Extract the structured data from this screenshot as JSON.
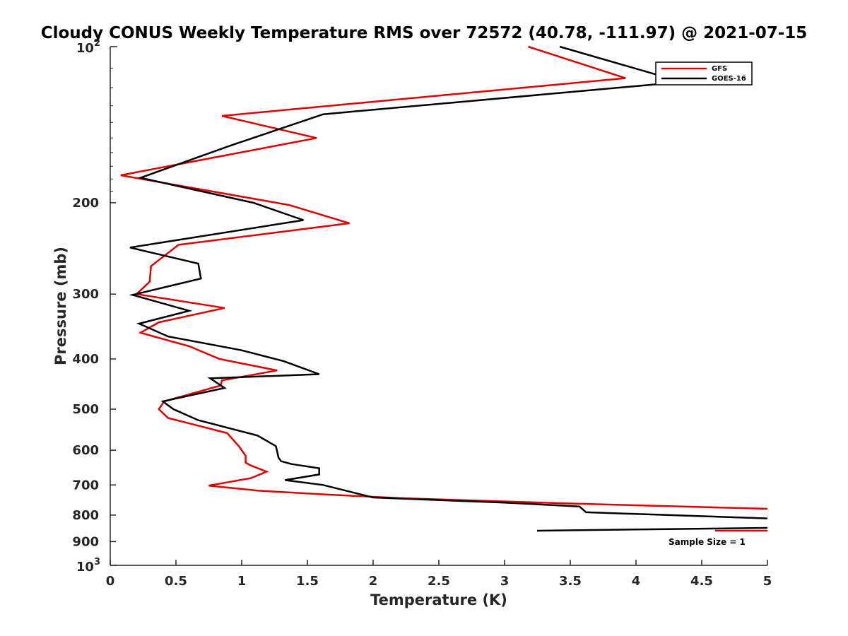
{
  "chart_data": {
    "type": "line",
    "title": "Cloudy CONUS Weekly Temperature RMS over 72572 (40.78, -111.97) @ 2021-07-15",
    "xlabel": "Temperature (K)",
    "ylabel": "Pressure (mb)",
    "xlim": [
      0,
      5
    ],
    "ylim": [
      100,
      1000
    ],
    "y_scale": "log",
    "y_reversed": true,
    "x_ticks": [
      0,
      0.5,
      1,
      1.5,
      2,
      2.5,
      3,
      3.5,
      4,
      4.5,
      5
    ],
    "x_tick_labels": [
      "0",
      "0.5",
      "1",
      "1.5",
      "2",
      "2.5",
      "3",
      "3.5",
      "4",
      "4.5",
      "5"
    ],
    "y_ticks": [
      200,
      300,
      400,
      500,
      600,
      700,
      800,
      900
    ],
    "y_tick_labels": [
      "200",
      "300",
      "400",
      "500",
      "600",
      "700",
      "800",
      "900"
    ],
    "y_decade_labels": [
      {
        "value": 100,
        "base": "10",
        "exp": "2"
      },
      {
        "value": 1000,
        "base": "10",
        "exp": "3"
      }
    ],
    "legend": {
      "position": "top-right"
    },
    "annotation": "Sample Size = 1",
    "series": [
      {
        "name": "GFS",
        "color": "#e00000",
        "points": [
          [
            3.18,
            100
          ],
          [
            3.92,
            115
          ],
          [
            0.85,
            136
          ],
          [
            1.57,
            150
          ],
          [
            0.08,
            177
          ],
          [
            1.36,
            202
          ],
          [
            1.82,
            219
          ],
          [
            0.52,
            241
          ],
          [
            0.31,
            265
          ],
          [
            0.3,
            284
          ],
          [
            0.2,
            300
          ],
          [
            0.87,
            319
          ],
          [
            0.37,
            340
          ],
          [
            0.23,
            356
          ],
          [
            0.6,
            378
          ],
          [
            0.83,
            400
          ],
          [
            1.27,
            421
          ],
          [
            0.85,
            440
          ],
          [
            0.84,
            450
          ],
          [
            0.41,
            483
          ],
          [
            0.37,
            500
          ],
          [
            0.44,
            520
          ],
          [
            0.89,
            556
          ],
          [
            0.98,
            590
          ],
          [
            1.03,
            615
          ],
          [
            1.03,
            634
          ],
          [
            1.07,
            642
          ],
          [
            1.19,
            660
          ],
          [
            1.07,
            679
          ],
          [
            0.75,
            702
          ],
          [
            1.13,
            718
          ],
          [
            1.64,
            730
          ],
          [
            2.2,
            742
          ],
          [
            3.5,
            760
          ],
          [
            5.0,
            778
          ]
        ]
      },
      {
        "name": "GOES-16",
        "color": "#000000",
        "points": [
          [
            3.42,
            100
          ],
          [
            4.35,
            117
          ],
          [
            1.62,
            135
          ],
          [
            0.92,
            155
          ],
          [
            0.23,
            179
          ],
          [
            1.09,
            200
          ],
          [
            1.47,
            216
          ],
          [
            0.15,
            244
          ],
          [
            0.67,
            262
          ],
          [
            0.69,
            280
          ],
          [
            0.17,
            301
          ],
          [
            0.6,
            323
          ],
          [
            0.22,
            342
          ],
          [
            0.44,
            362
          ],
          [
            1.0,
            385
          ],
          [
            1.32,
            404
          ],
          [
            1.59,
            428
          ],
          [
            0.76,
            436
          ],
          [
            0.87,
            455
          ],
          [
            0.4,
            483
          ],
          [
            0.48,
            500
          ],
          [
            0.67,
            525
          ],
          [
            1.12,
            562
          ],
          [
            1.26,
            589
          ],
          [
            1.27,
            603
          ],
          [
            1.28,
            620
          ],
          [
            1.3,
            630
          ],
          [
            1.38,
            638
          ],
          [
            1.59,
            650
          ],
          [
            1.59,
            668
          ],
          [
            1.33,
            685
          ],
          [
            1.62,
            700
          ],
          [
            2.0,
            740
          ],
          [
            3.0,
            757
          ],
          [
            3.57,
            770
          ],
          [
            3.62,
            790
          ],
          [
            5.0,
            812
          ]
        ]
      }
    ]
  }
}
